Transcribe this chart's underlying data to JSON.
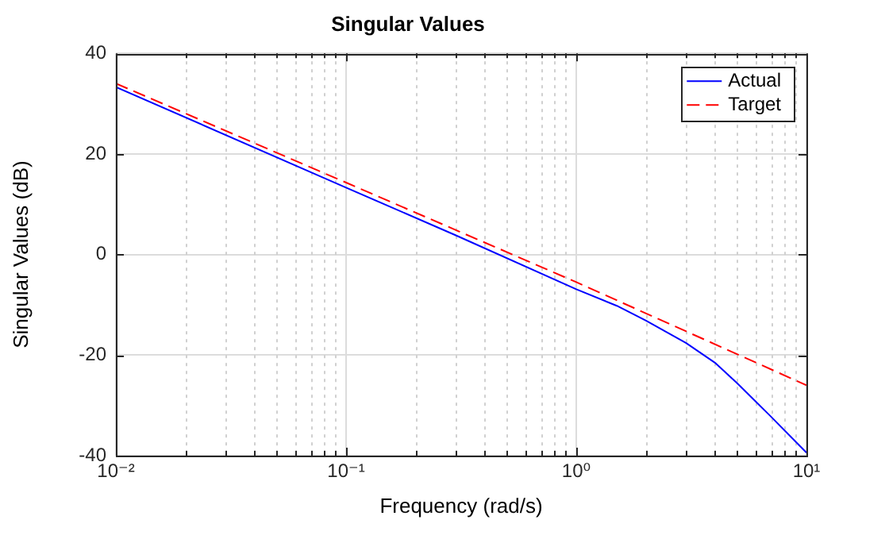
{
  "chart_data": {
    "type": "line",
    "title": "Singular Values",
    "xlabel": "Frequency (rad/s)",
    "ylabel": "Singular Values (dB)",
    "log": "x",
    "xlim": [
      0.01,
      10
    ],
    "xticks": [
      {
        "value": 0.01,
        "label": "10⁻²"
      },
      {
        "value": 0.02,
        "label": null
      },
      {
        "value": 0.03,
        "label": null
      },
      {
        "value": 0.04,
        "label": null
      },
      {
        "value": 0.05,
        "label": null
      },
      {
        "value": 0.06,
        "label": null
      },
      {
        "value": 0.07,
        "label": null
      },
      {
        "value": 0.08,
        "label": null
      },
      {
        "value": 0.09,
        "label": null
      },
      {
        "value": 0.1,
        "label": "10⁻¹"
      },
      {
        "value": 0.2,
        "label": null
      },
      {
        "value": 0.3,
        "label": null
      },
      {
        "value": 0.4,
        "label": null
      },
      {
        "value": 0.5,
        "label": null
      },
      {
        "value": 0.6,
        "label": null
      },
      {
        "value": 0.7,
        "label": null
      },
      {
        "value": 0.8,
        "label": null
      },
      {
        "value": 0.9,
        "label": null
      },
      {
        "value": 1,
        "label": "10⁰"
      },
      {
        "value": 2,
        "label": null
      },
      {
        "value": 3,
        "label": null
      },
      {
        "value": 4,
        "label": null
      },
      {
        "value": 5,
        "label": null
      },
      {
        "value": 6,
        "label": null
      },
      {
        "value": 7,
        "label": null
      },
      {
        "value": 8,
        "label": null
      },
      {
        "value": 9,
        "label": null
      },
      {
        "value": 10,
        "label": "10¹"
      }
    ],
    "ylim": [
      -40,
      40
    ],
    "yticks": [
      -40,
      -20,
      0,
      20,
      40
    ],
    "grid": true,
    "legend": "top right",
    "series": [
      {
        "name": "Actual",
        "color": "#0000ff",
        "line_style": "solid",
        "x": [
          0.01,
          0.1,
          0.3,
          1,
          1.5,
          2,
          3,
          4,
          5,
          7,
          10
        ],
        "values": [
          33.3,
          13.3,
          3.8,
          -6.9,
          -10.2,
          -13.1,
          -17.6,
          -21.5,
          -25.6,
          -32.2,
          -39.4
        ]
      },
      {
        "name": "Target",
        "color": "#ff0000",
        "line_style": "dashed",
        "x": [
          0.01,
          0.1,
          1,
          10
        ],
        "values": [
          34,
          14.3,
          -5.5,
          -26
        ]
      }
    ]
  }
}
